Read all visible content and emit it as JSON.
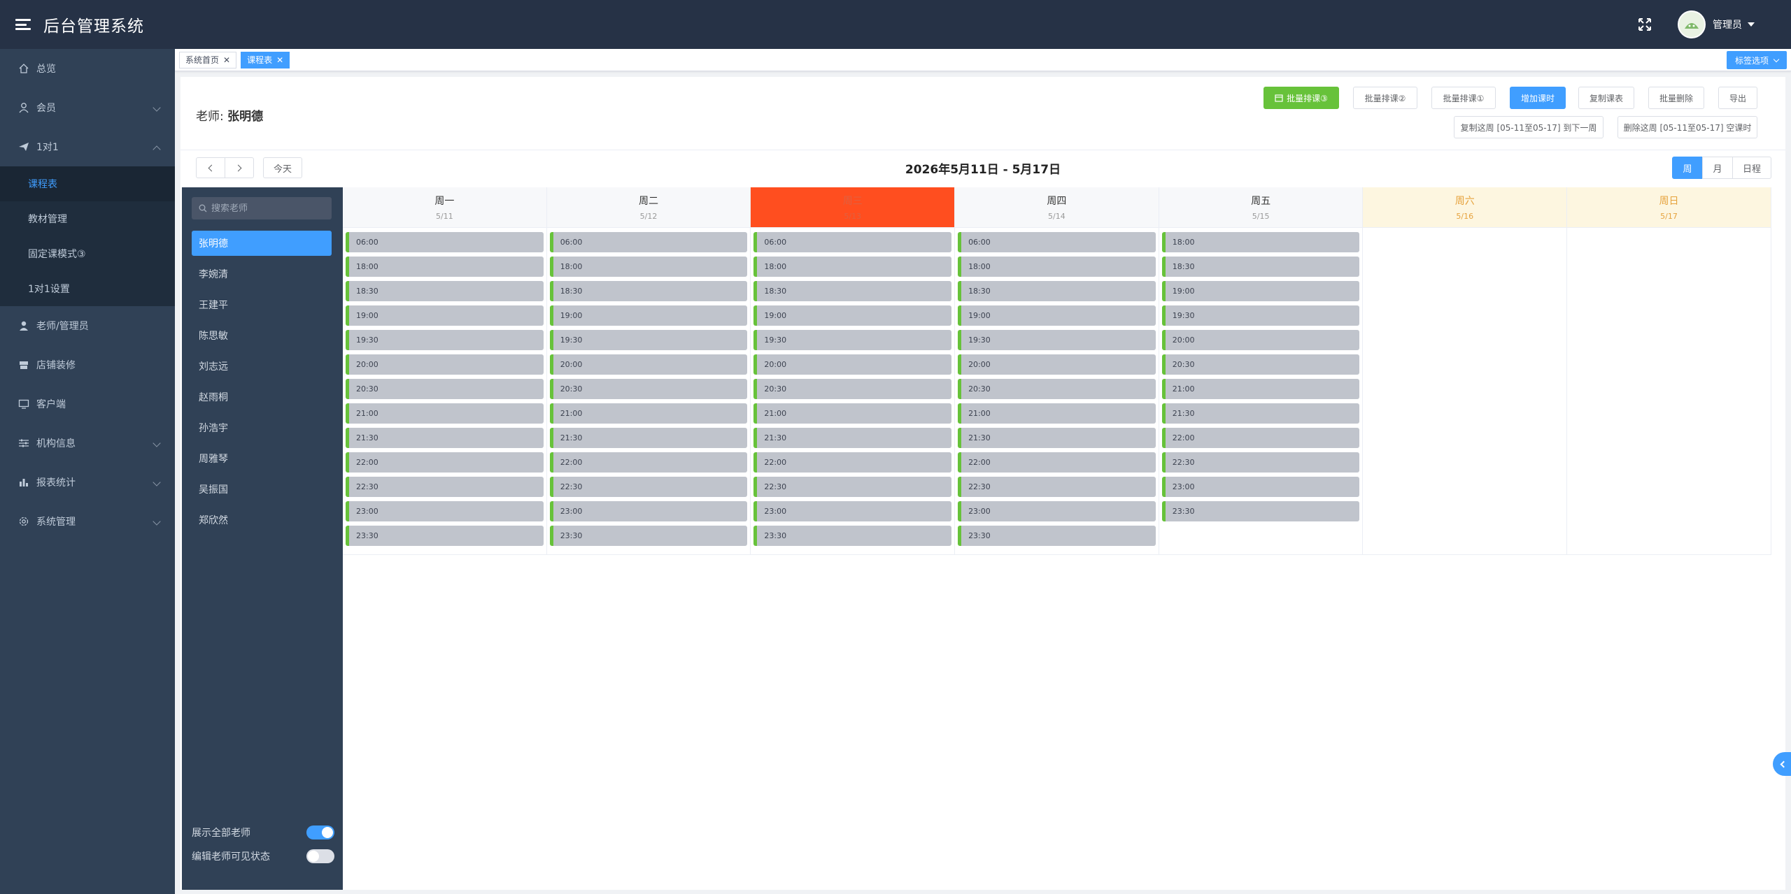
{
  "header": {
    "title": "后台管理系统",
    "user": "管理员"
  },
  "sidebar": {
    "items": [
      {
        "label": "总览",
        "icon": "home-icon",
        "arrow": "none"
      },
      {
        "label": "会员",
        "icon": "user-icon",
        "arrow": "down"
      },
      {
        "label": "1对1",
        "icon": "paper-plane-icon",
        "arrow": "up"
      }
    ],
    "sub_items": [
      "课程表",
      "教材管理",
      "固定课模式③",
      "1对1设置"
    ],
    "items_after": [
      {
        "label": "老师/管理员",
        "icon": "person-icon",
        "arrow": "none"
      },
      {
        "label": "店铺装修",
        "icon": "store-icon",
        "arrow": "none"
      },
      {
        "label": "客户端",
        "icon": "monitor-icon",
        "arrow": "none"
      },
      {
        "label": "机构信息",
        "icon": "sliders-icon",
        "arrow": "down"
      },
      {
        "label": "报表统计",
        "icon": "bar-chart-icon",
        "arrow": "down"
      },
      {
        "label": "系统管理",
        "icon": "gear-icon",
        "arrow": "down"
      }
    ]
  },
  "tags": [
    {
      "label": "系统首页",
      "active": false
    },
    {
      "label": "课程表",
      "active": true
    }
  ],
  "tag_options": "标签选项",
  "teacher": {
    "prefix": "老师:",
    "name": "张明德"
  },
  "toolbar": {
    "batch_schedule_3": "批量排课③",
    "batch_schedule_2": "批量排课②",
    "batch_schedule_1": "批量排课①",
    "add_lesson": "增加课时",
    "copy_schedule": "复制课表",
    "batch_delete": "批量删除",
    "export": "导出",
    "copy_week": "复制这周 [05-11至05-17] 到下一周",
    "delete_week": "删除这周 [05-11至05-17] 空课时"
  },
  "calendar_nav": {
    "today": "今天",
    "range": "2026年5月11日 - 5月17日"
  },
  "views": [
    "周",
    "月",
    "日程"
  ],
  "search": {
    "placeholder": "搜索老师"
  },
  "teachers": [
    "张明德",
    "李婉清",
    "王建平",
    "陈思敏",
    "刘志远",
    "赵雨桐",
    "孙浩宇",
    "周雅琴",
    "吴振国",
    "郑欣然"
  ],
  "switches": [
    {
      "label": "展示全部老师",
      "on": true
    },
    {
      "label": "编辑老师可见状态",
      "on": false
    }
  ],
  "days": [
    {
      "name": "周一",
      "date": "5/11",
      "type": "normal",
      "slots": [
        "06:00",
        "18:00",
        "18:30",
        "19:00",
        "19:30",
        "20:00",
        "20:30",
        "21:00",
        "21:30",
        "22:00",
        "22:30",
        "23:00",
        "23:30"
      ]
    },
    {
      "name": "周二",
      "date": "5/12",
      "type": "normal",
      "slots": [
        "06:00",
        "18:00",
        "18:30",
        "19:00",
        "19:30",
        "20:00",
        "20:30",
        "21:00",
        "21:30",
        "22:00",
        "22:30",
        "23:00",
        "23:30"
      ]
    },
    {
      "name": "周三",
      "date": "5/13",
      "type": "today",
      "slots": [
        "06:00",
        "18:00",
        "18:30",
        "19:00",
        "19:30",
        "20:00",
        "20:30",
        "21:00",
        "21:30",
        "22:00",
        "22:30",
        "23:00",
        "23:30"
      ]
    },
    {
      "name": "周四",
      "date": "5/14",
      "type": "normal",
      "slots": [
        "06:00",
        "18:00",
        "18:30",
        "19:00",
        "19:30",
        "20:00",
        "20:30",
        "21:00",
        "21:30",
        "22:00",
        "22:30",
        "23:00",
        "23:30"
      ]
    },
    {
      "name": "周五",
      "date": "5/15",
      "type": "normal",
      "slots": [
        "18:00",
        "18:30",
        "19:00",
        "19:30",
        "20:00",
        "20:30",
        "21:00",
        "21:30",
        "22:00",
        "22:30",
        "23:00",
        "23:30"
      ]
    },
    {
      "name": "周六",
      "date": "5/16",
      "type": "weekend",
      "slots": []
    },
    {
      "name": "周日",
      "date": "5/17",
      "type": "weekend",
      "slots": []
    }
  ],
  "colors": {
    "primary": "#409eff",
    "success": "#67c23a",
    "today": "#ff4e1f",
    "sidebar": "#304156",
    "header": "#263246"
  }
}
